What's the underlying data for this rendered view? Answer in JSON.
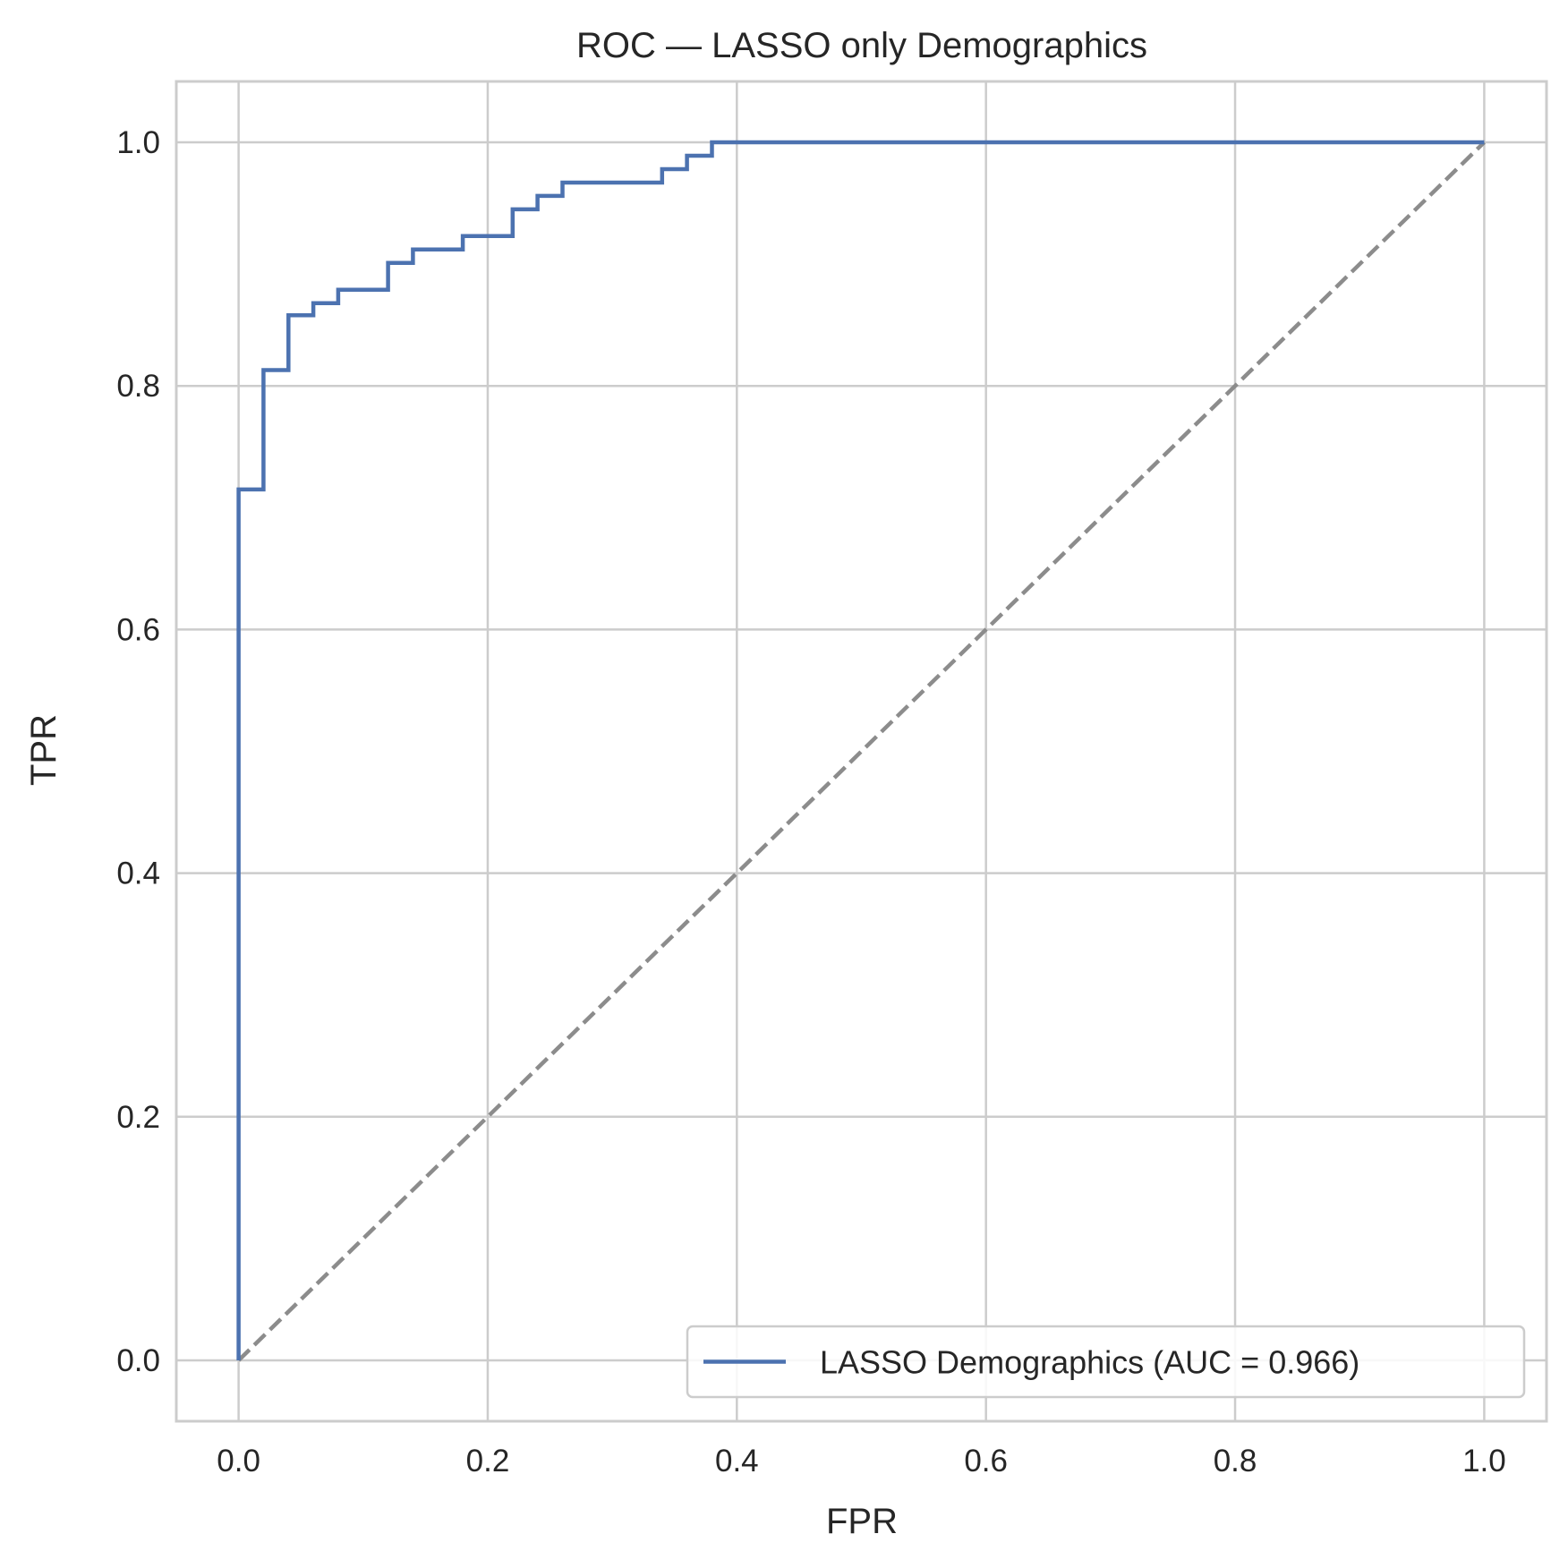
{
  "chart_data": {
    "type": "line",
    "title": "ROC — LASSO only Demographics",
    "xlabel": "FPR",
    "ylabel": "TPR",
    "xlim": [
      -0.05,
      1.05
    ],
    "ylim": [
      -0.05,
      1.05
    ],
    "xticks": [
      0.0,
      0.2,
      0.4,
      0.6,
      0.8,
      1.0
    ],
    "yticks": [
      0.0,
      0.2,
      0.4,
      0.6,
      0.8,
      1.0
    ],
    "xtick_labels": [
      "0.0",
      "0.2",
      "0.4",
      "0.6",
      "0.8",
      "1.0"
    ],
    "ytick_labels": [
      "0.0",
      "0.2",
      "0.4",
      "0.6",
      "0.8",
      "1.0"
    ],
    "grid": true,
    "legend_position": "lower-right",
    "series": [
      {
        "name": "LASSO Demographics (AUC = 0.966)",
        "style": "steps",
        "color": "#4c72b0",
        "x": [
          0.0,
          0.0,
          0.02,
          0.02,
          0.04,
          0.04,
          0.06,
          0.06,
          0.08,
          0.08,
          0.12,
          0.12,
          0.14,
          0.14,
          0.18,
          0.18,
          0.22,
          0.22,
          0.24,
          0.24,
          0.26,
          0.26,
          0.34,
          0.34,
          0.36,
          0.36,
          0.38,
          0.38,
          1.0
        ],
        "y": [
          0.0,
          0.715,
          0.715,
          0.813,
          0.813,
          0.858,
          0.858,
          0.868,
          0.868,
          0.879,
          0.879,
          0.901,
          0.901,
          0.912,
          0.912,
          0.923,
          0.923,
          0.945,
          0.945,
          0.956,
          0.956,
          0.967,
          0.967,
          0.978,
          0.978,
          0.989,
          0.989,
          1.0,
          1.0
        ]
      },
      {
        "name": "",
        "style": "dashed",
        "color": "#8c8c8c",
        "x": [
          0.0,
          1.0
        ],
        "y": [
          0.0,
          1.0
        ]
      }
    ],
    "legend": [
      {
        "label": "LASSO Demographics (AUC = 0.966)",
        "color": "#4c72b0"
      }
    ]
  }
}
